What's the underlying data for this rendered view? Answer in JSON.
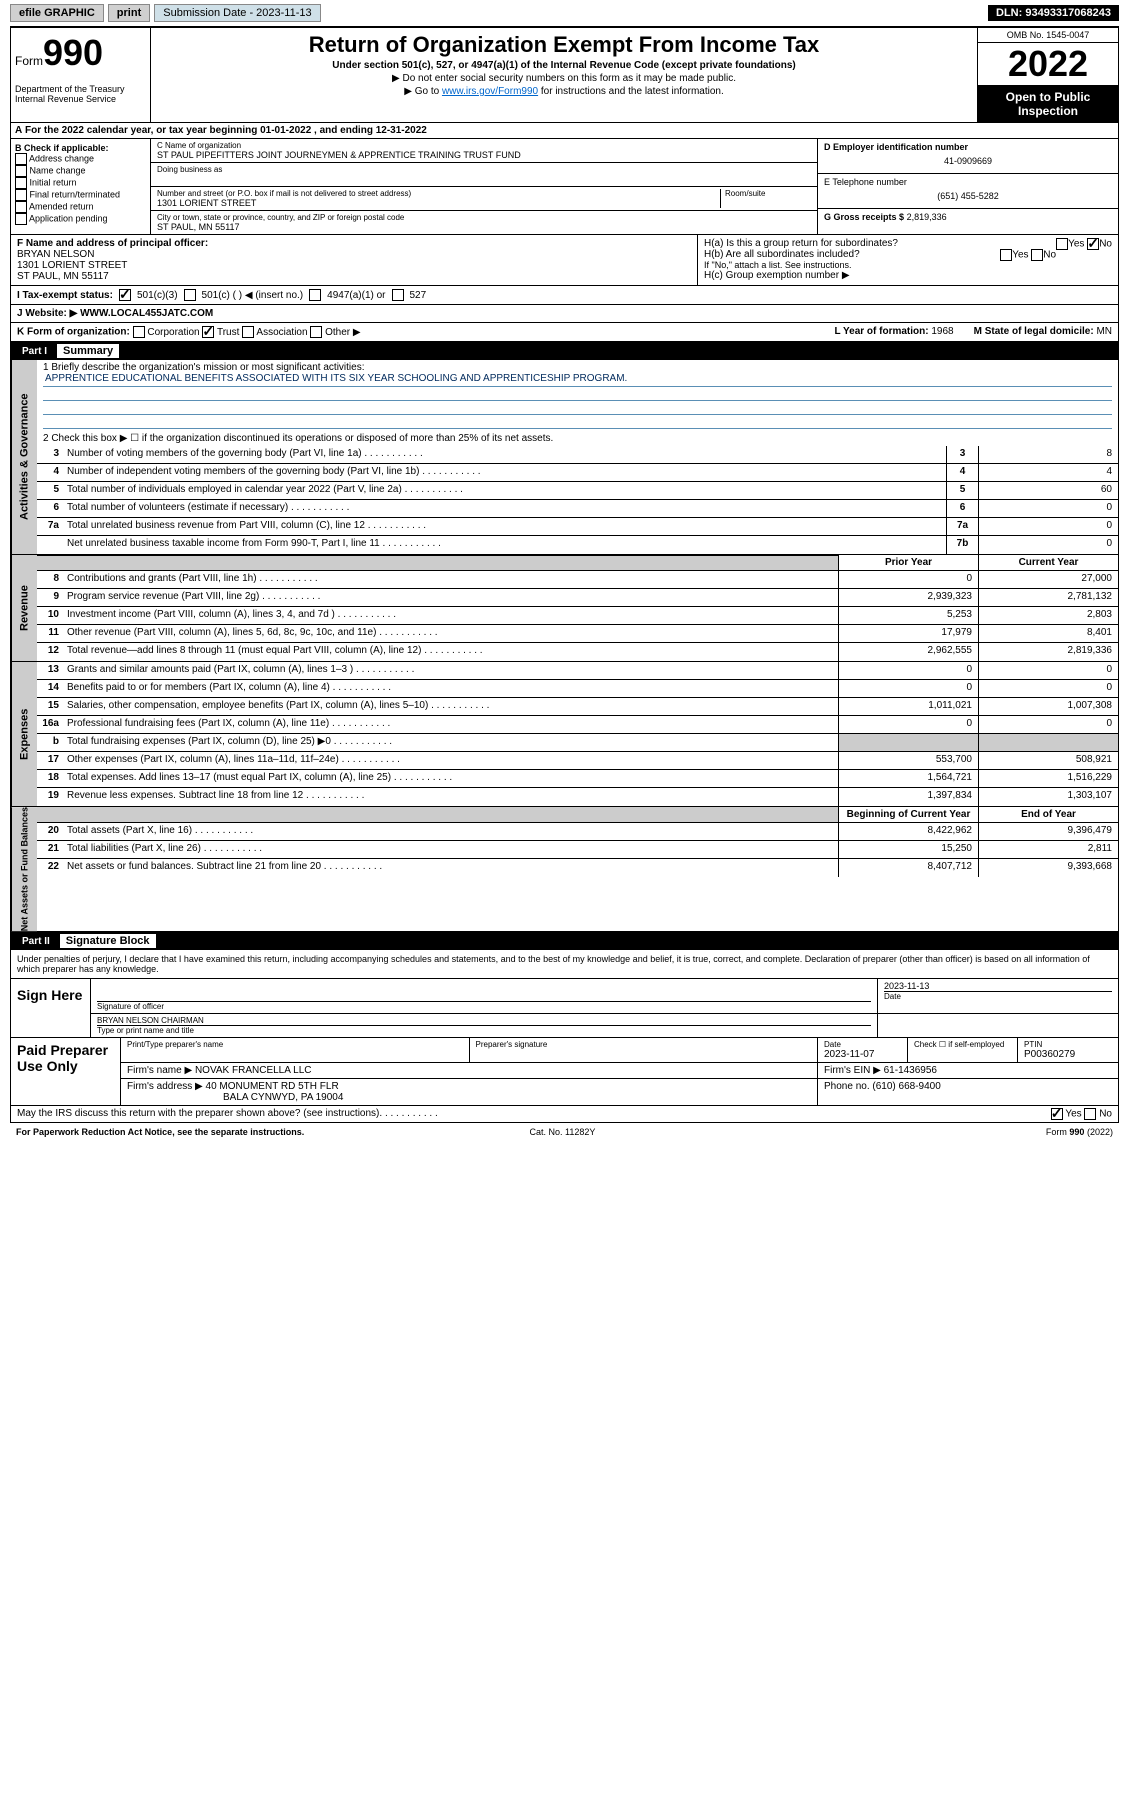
{
  "topbar": {
    "efile": "efile GRAPHIC",
    "print": "print",
    "sub_label": "Submission Date - 2023-11-13",
    "dln": "DLN: 93493317068243"
  },
  "header": {
    "form_word": "Form",
    "form_num": "990",
    "title": "Return of Organization Exempt From Income Tax",
    "sub1": "Under section 501(c), 527, or 4947(a)(1) of the Internal Revenue Code (except private foundations)",
    "sub2": "▶ Do not enter social security numbers on this form as it may be made public.",
    "sub3_pre": "▶ Go to ",
    "sub3_link": "www.irs.gov/Form990",
    "sub3_post": " for instructions and the latest information.",
    "dept": "Department of the Treasury\nInternal Revenue Service",
    "omb": "OMB No. 1545-0047",
    "year": "2022",
    "open": "Open to Public Inspection"
  },
  "lineA": "For the 2022 calendar year, or tax year beginning 01-01-2022   , and ending 12-31-2022",
  "colB": {
    "hdr": "B Check if applicable:",
    "items": [
      "Address change",
      "Name change",
      "Initial return",
      "Final return/terminated",
      "Amended return",
      "Application pending"
    ]
  },
  "colC": {
    "cname_lbl": "C Name of organization",
    "cname": "ST PAUL PIPEFITTERS JOINT JOURNEYMEN & APPRENTICE TRAINING TRUST FUND",
    "dba_lbl": "Doing business as",
    "addr_lbl": "Number and street (or P.O. box if mail is not delivered to street address)",
    "addr": "1301 LORIENT STREET",
    "suite_lbl": "Room/suite",
    "city_lbl": "City or town, state or province, country, and ZIP or foreign postal code",
    "city": "ST PAUL, MN  55117"
  },
  "colDE": {
    "d_lbl": "D Employer identification number",
    "d_val": "41-0909669",
    "e_lbl": "E Telephone number",
    "e_val": "(651) 455-5282",
    "g_lbl": "G Gross receipts $",
    "g_val": "2,819,336"
  },
  "lineF": {
    "lbl": "F  Name and address of principal officer:",
    "name": "BRYAN NELSON",
    "addr1": "1301 LORIENT STREET",
    "addr2": "ST PAUL, MN  55117"
  },
  "lineH": {
    "ha": "H(a)  Is this a group return for subordinates?",
    "hb": "H(b)  Are all subordinates included?",
    "hb_note": "If \"No,\" attach a list. See instructions.",
    "hc": "H(c)  Group exemption number ▶"
  },
  "lineI": {
    "lbl": "I   Tax-exempt status:",
    "o1": "501(c)(3)",
    "o2": "501(c) (  ) ◀ (insert no.)",
    "o3": "4947(a)(1) or",
    "o4": "527"
  },
  "lineJ": {
    "lbl": "J   Website: ▶",
    "val": "WWW.LOCAL455JATC.COM"
  },
  "lineK": {
    "lbl": "K Form of organization:",
    "opts": [
      "Corporation",
      "Trust",
      "Association",
      "Other ▶"
    ],
    "yof_lbl": "L Year of formation:",
    "yof": "1968",
    "dom_lbl": "M State of legal domicile:",
    "dom": "MN"
  },
  "part1": {
    "num": "Part I",
    "title": "Summary",
    "mission_lbl": "1   Briefly describe the organization's mission or most significant activities:",
    "mission": "APPRENTICE EDUCATIONAL BENEFITS ASSOCIATED WITH ITS SIX YEAR SCHOOLING AND APPRENTICESHIP PROGRAM.",
    "l2": "2   Check this box ▶ ☐ if the organization discontinued its operations or disposed of more than 25% of its net assets.",
    "rows_ag": [
      {
        "n": "3",
        "d": "Number of voting members of the governing body (Part VI, line 1a)",
        "box": "3",
        "v": "8"
      },
      {
        "n": "4",
        "d": "Number of independent voting members of the governing body (Part VI, line 1b)",
        "box": "4",
        "v": "4"
      },
      {
        "n": "5",
        "d": "Total number of individuals employed in calendar year 2022 (Part V, line 2a)",
        "box": "5",
        "v": "60"
      },
      {
        "n": "6",
        "d": "Total number of volunteers (estimate if necessary)",
        "box": "6",
        "v": "0"
      },
      {
        "n": "7a",
        "d": "Total unrelated business revenue from Part VIII, column (C), line 12",
        "box": "7a",
        "v": "0"
      },
      {
        "n": "",
        "d": "Net unrelated business taxable income from Form 990-T, Part I, line 11",
        "box": "7b",
        "v": "0"
      }
    ],
    "prior_lbl": "Prior Year",
    "curr_lbl": "Current Year",
    "rows_rev": [
      {
        "n": "8",
        "d": "Contributions and grants (Part VIII, line 1h)",
        "p": "0",
        "c": "27,000"
      },
      {
        "n": "9",
        "d": "Program service revenue (Part VIII, line 2g)",
        "p": "2,939,323",
        "c": "2,781,132"
      },
      {
        "n": "10",
        "d": "Investment income (Part VIII, column (A), lines 3, 4, and 7d )",
        "p": "5,253",
        "c": "2,803"
      },
      {
        "n": "11",
        "d": "Other revenue (Part VIII, column (A), lines 5, 6d, 8c, 9c, 10c, and 11e)",
        "p": "17,979",
        "c": "8,401"
      },
      {
        "n": "12",
        "d": "Total revenue—add lines 8 through 11 (must equal Part VIII, column (A), line 12)",
        "p": "2,962,555",
        "c": "2,819,336"
      }
    ],
    "rows_exp": [
      {
        "n": "13",
        "d": "Grants and similar amounts paid (Part IX, column (A), lines 1–3 )",
        "p": "0",
        "c": "0"
      },
      {
        "n": "14",
        "d": "Benefits paid to or for members (Part IX, column (A), line 4)",
        "p": "0",
        "c": "0"
      },
      {
        "n": "15",
        "d": "Salaries, other compensation, employee benefits (Part IX, column (A), lines 5–10)",
        "p": "1,011,021",
        "c": "1,007,308"
      },
      {
        "n": "16a",
        "d": "Professional fundraising fees (Part IX, column (A), line 11e)",
        "p": "0",
        "c": "0"
      },
      {
        "n": "b",
        "d": "Total fundraising expenses (Part IX, column (D), line 25) ▶0",
        "p": "",
        "c": "",
        "grey": true
      },
      {
        "n": "17",
        "d": "Other expenses (Part IX, column (A), lines 11a–11d, 11f–24e)",
        "p": "553,700",
        "c": "508,921"
      },
      {
        "n": "18",
        "d": "Total expenses. Add lines 13–17 (must equal Part IX, column (A), line 25)",
        "p": "1,564,721",
        "c": "1,516,229"
      },
      {
        "n": "19",
        "d": "Revenue less expenses. Subtract line 18 from line 12",
        "p": "1,397,834",
        "c": "1,303,107"
      }
    ],
    "bbal_lbl": "Beginning of Current Year",
    "ey_lbl": "End of Year",
    "rows_na": [
      {
        "n": "20",
        "d": "Total assets (Part X, line 16)",
        "p": "8,422,962",
        "c": "9,396,479"
      },
      {
        "n": "21",
        "d": "Total liabilities (Part X, line 26)",
        "p": "15,250",
        "c": "2,811"
      },
      {
        "n": "22",
        "d": "Net assets or fund balances. Subtract line 21 from line 20",
        "p": "8,407,712",
        "c": "9,393,668"
      }
    ]
  },
  "part2": {
    "num": "Part II",
    "title": "Signature Block"
  },
  "sig": {
    "intro": "Under penalties of perjury, I declare that I have examined this return, including accompanying schedules and statements, and to the best of my knowledge and belief, it is true, correct, and complete. Declaration of preparer (other than officer) is based on all information of which preparer has any knowledge.",
    "here": "Sign Here",
    "sig_lbl": "Signature of officer",
    "date_lbl": "Date",
    "date": "2023-11-13",
    "name": "BRYAN NELSON  CHAIRMAN",
    "name_lbl": "Type or print name and title"
  },
  "paid": {
    "lbl": "Paid Preparer Use Only",
    "h1": "Print/Type preparer's name",
    "h2": "Preparer's signature",
    "h3": "Date",
    "h4": "Check ☐ if self-employed",
    "h5": "PTIN",
    "date": "2023-11-07",
    "ptin": "P00360279",
    "firm_lbl": "Firm's name    ▶",
    "firm": "NOVAK FRANCELLA LLC",
    "ein_lbl": "Firm's EIN ▶",
    "ein": "61-1436956",
    "addr_lbl": "Firm's address ▶",
    "addr1": "40 MONUMENT RD 5TH FLR",
    "addr2": "BALA CYNWYD, PA  19004",
    "phone_lbl": "Phone no.",
    "phone": "(610) 668-9400"
  },
  "discuss": "May the IRS discuss this return with the preparer shown above? (see instructions)",
  "bottom": {
    "l": "For Paperwork Reduction Act Notice, see the separate instructions.",
    "c": "Cat. No. 11282Y",
    "r": "Form 990 (2022)"
  },
  "labels": {
    "yes": "Yes",
    "no": "No"
  }
}
